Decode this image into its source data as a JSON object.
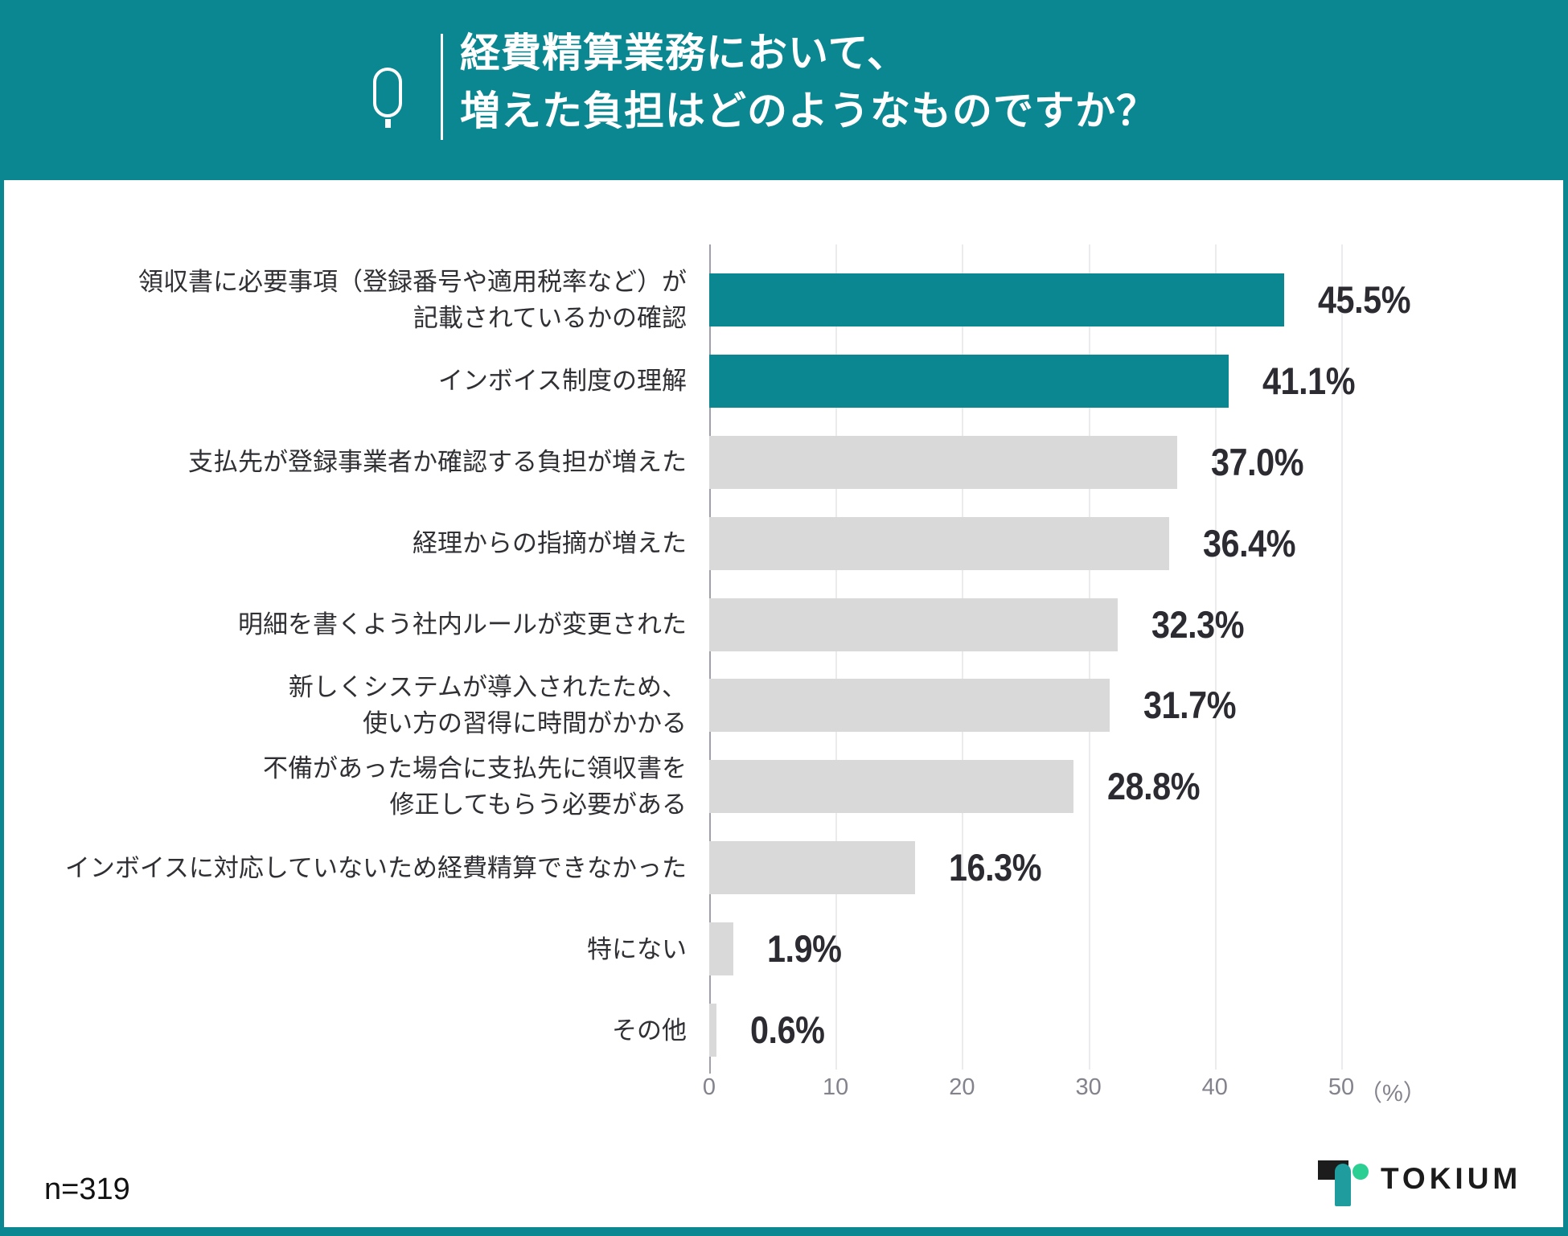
{
  "header": {
    "question_icon": "q-question-icon",
    "title_line1": "経費精算業務において、",
    "title_line2": "増えた負担はどのようなものですか？"
  },
  "chart_data": {
    "type": "bar",
    "orientation": "horizontal",
    "title": "経費精算業務において、増えた負担はどのようなものですか？",
    "categories": [
      [
        "領収書に必要事項（登録番号や適用税率など）が",
        "記載されているかの確認"
      ],
      [
        "インボイス制度の理解"
      ],
      [
        "支払先が登録事業者か確認する負担が増えた"
      ],
      [
        "経理からの指摘が増えた"
      ],
      [
        "明細を書くよう社内ルールが変更された"
      ],
      [
        "新しくシステムが導入されたため、",
        "使い方の習得に時間がかかる"
      ],
      [
        "不備があった場合に支払先に領収書を",
        "修正してもらう必要がある"
      ],
      [
        "インボイスに対応していないため経費精算できなかった"
      ],
      [
        "特にない"
      ],
      [
        "その他"
      ]
    ],
    "values": [
      45.5,
      41.1,
      37.0,
      36.4,
      32.3,
      31.7,
      28.8,
      16.3,
      1.9,
      0.6
    ],
    "value_labels": [
      "45.5%",
      "41.1%",
      "37.0%",
      "36.4%",
      "32.3%",
      "31.7%",
      "28.8%",
      "16.3%",
      "1.9%",
      "0.6%"
    ],
    "highlighted_indices": [
      0,
      1
    ],
    "xlabel": "",
    "ylabel": "",
    "xlim": [
      0,
      50
    ],
    "x_ticks": [
      "0",
      "10",
      "20",
      "30",
      "40",
      "50"
    ],
    "x_unit": "（%）",
    "grid": "vertical",
    "legend": "none",
    "colors": {
      "highlight_bar": "#0a8790",
      "default_bar": "#d9d9d9",
      "value_text": "#2b2b31",
      "category_text": "#2f2f34",
      "tick_text": "#83838d",
      "gridline": "#ebebee",
      "axis_line": "#9fa0a8",
      "header_background": "#0a8790",
      "panel_background": "#ffffff"
    }
  },
  "footer": {
    "sample_size": "n=319",
    "logo_text": "TOKIUM",
    "logo_colors": {
      "mark_black": "#1c1c1c",
      "mark_teal": "#1f9c9d",
      "mark_green": "#2bce93"
    }
  }
}
